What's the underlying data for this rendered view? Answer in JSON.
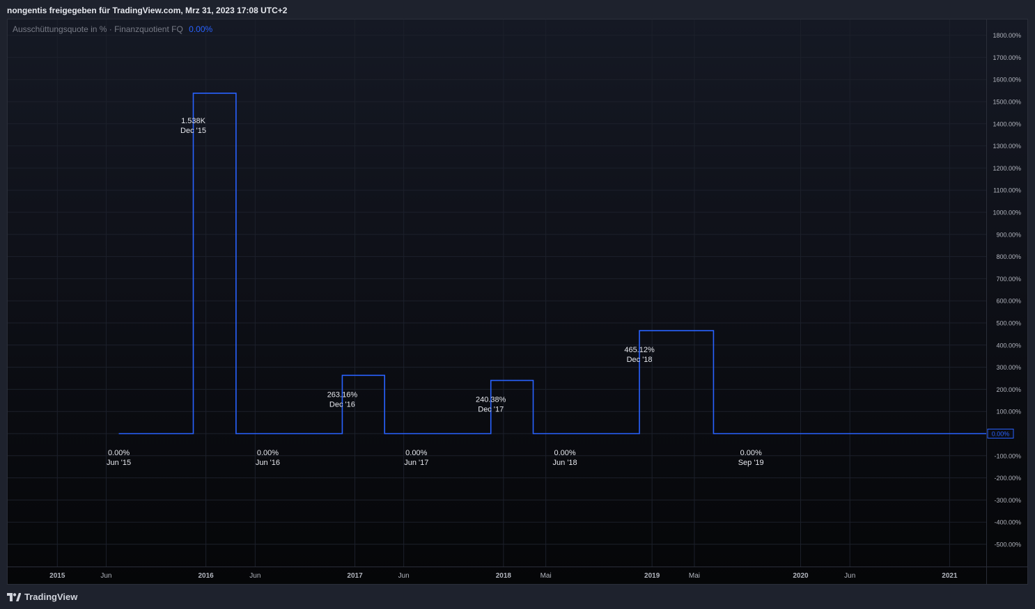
{
  "header": {
    "share_text": "nongentis freigegeben für TradingView.com, Mrz 31, 2023 17:08 UTC+2"
  },
  "indicator": {
    "name": "Ausschüttungsquote in % · Finanzquotient FQ",
    "value": "0.00%"
  },
  "footer": {
    "brand": "TradingView"
  },
  "colors": {
    "line": "#2962ff",
    "axis_text": "#b2b5be",
    "grid": "#1c202b",
    "label_text": "#e6e8ee"
  },
  "chart_data": {
    "type": "line",
    "step": true,
    "title": "",
    "xlabel": "",
    "ylabel": "",
    "ylim": [
      -600,
      1800
    ],
    "grid": true,
    "y_ticks": [
      1800,
      1700,
      1600,
      1500,
      1400,
      1300,
      1200,
      1100,
      1000,
      900,
      800,
      700,
      600,
      500,
      400,
      300,
      200,
      100,
      0,
      -100,
      -200,
      -300,
      -400,
      -500
    ],
    "y_tick_labels": [
      "1800.00%",
      "1700.00%",
      "1600.00%",
      "1500.00%",
      "1400.00%",
      "1300.00%",
      "1200.00%",
      "1100.00%",
      "1000.00%",
      "900.00%",
      "800.00%",
      "700.00%",
      "600.00%",
      "500.00%",
      "400.00%",
      "300.00%",
      "200.00%",
      "100.00%",
      "",
      "-100.00%",
      "-200.00%",
      "-300.00%",
      "-400.00%",
      "-500.00%"
    ],
    "x_ticks": [
      {
        "date": "2015-01-01",
        "label": "2015",
        "major": true
      },
      {
        "date": "2015-05-01",
        "label": "Jun",
        "major": false
      },
      {
        "date": "2016-01-01",
        "label": "2016",
        "major": true
      },
      {
        "date": "2016-05-01",
        "label": "Jun",
        "major": false
      },
      {
        "date": "2017-01-01",
        "label": "2017",
        "major": true
      },
      {
        "date": "2017-05-01",
        "label": "Jun",
        "major": false
      },
      {
        "date": "2018-01-01",
        "label": "2018",
        "major": true
      },
      {
        "date": "2018-04-15",
        "label": "Mai",
        "major": false
      },
      {
        "date": "2019-01-01",
        "label": "2019",
        "major": true
      },
      {
        "date": "2019-04-15",
        "label": "Mai",
        "major": false
      },
      {
        "date": "2020-01-01",
        "label": "2020",
        "major": true
      },
      {
        "date": "2020-05-01",
        "label": "Jun",
        "major": false
      },
      {
        "date": "2021-01-01",
        "label": "2021",
        "major": true
      }
    ],
    "x_range": [
      "2014-09-01",
      "2021-04-01"
    ],
    "series": [
      {
        "points": [
          {
            "date": "2015-06-01",
            "value": 0
          },
          {
            "date": "2015-12-01",
            "value": 1538
          },
          {
            "date": "2016-03-15",
            "value": 0
          },
          {
            "date": "2016-12-01",
            "value": 263.16
          },
          {
            "date": "2017-03-15",
            "value": 0
          },
          {
            "date": "2017-12-01",
            "value": 240.38
          },
          {
            "date": "2018-03-15",
            "value": 0
          },
          {
            "date": "2018-12-01",
            "value": 465.12
          },
          {
            "date": "2019-06-01",
            "value": 0
          },
          {
            "date": "2021-04-01",
            "value": 0
          }
        ]
      }
    ],
    "annotations": [
      {
        "date": "2015-06-01",
        "anchor_value": 0,
        "where": "below",
        "value_label": "0.00%",
        "date_label": "Jun '15"
      },
      {
        "date": "2015-12-01",
        "anchor_value": 1538,
        "where": "below",
        "value_label": "1.538K",
        "date_label": "Dec '15"
      },
      {
        "date": "2016-06-01",
        "anchor_value": 0,
        "where": "below",
        "value_label": "0.00%",
        "date_label": "Jun '16"
      },
      {
        "date": "2016-12-01",
        "anchor_value": 263.16,
        "where": "below",
        "value_label": "263.16%",
        "date_label": "Dec '16"
      },
      {
        "date": "2017-06-01",
        "anchor_value": 0,
        "where": "below",
        "value_label": "0.00%",
        "date_label": "Jun '17"
      },
      {
        "date": "2017-12-01",
        "anchor_value": 240.38,
        "where": "below",
        "value_label": "240.38%",
        "date_label": "Dec '17"
      },
      {
        "date": "2018-06-01",
        "anchor_value": 0,
        "where": "below",
        "value_label": "0.00%",
        "date_label": "Jun '18"
      },
      {
        "date": "2018-12-01",
        "anchor_value": 465.12,
        "where": "below",
        "value_label": "465.12%",
        "date_label": "Dec '18"
      },
      {
        "date": "2019-09-01",
        "anchor_value": 0,
        "where": "below",
        "value_label": "0.00%",
        "date_label": "Sep '19"
      }
    ],
    "last_value_label": "0.00%"
  }
}
